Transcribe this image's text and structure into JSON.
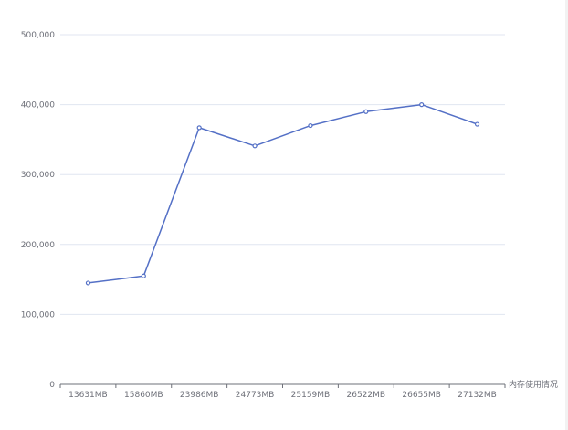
{
  "chart_data": {
    "type": "line",
    "categories": [
      "13631MB",
      "15860MB",
      "23986MB",
      "24773MB",
      "25159MB",
      "26522MB",
      "26655MB",
      "27132MB"
    ],
    "series": [
      {
        "values": [
          145000,
          155000,
          367000,
          341000,
          370000,
          390000,
          400000,
          372000
        ],
        "color": "#5470c6"
      }
    ],
    "xlabel": "内存使用情况",
    "ylabel": "",
    "ylim": [
      0,
      500000
    ],
    "y_ticks": [
      0,
      100000,
      200000,
      300000,
      400000,
      500000
    ],
    "y_tick_labels": [
      "0",
      "100,000",
      "200,000",
      "300,000",
      "400,000",
      "500,000"
    ],
    "grid": true,
    "legend": "none"
  }
}
